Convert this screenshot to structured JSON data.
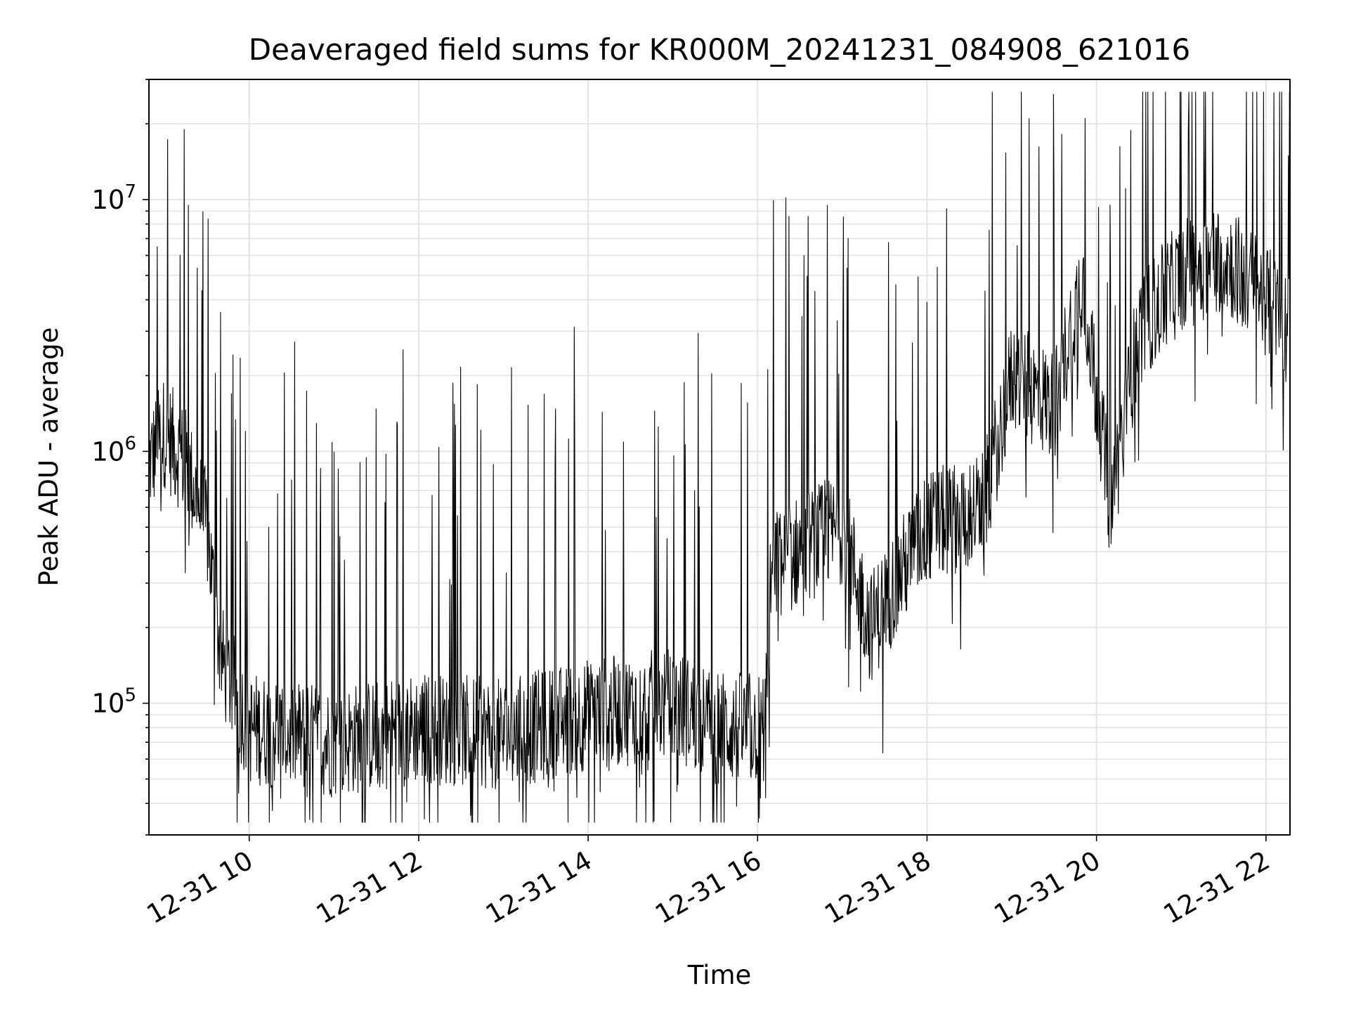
{
  "chart_data": {
    "type": "line",
    "title": "Deaveraged field sums for KR000M_20241231_084908_621016",
    "xlabel": "Time",
    "ylabel": "Peak ADU - average",
    "x_type": "time",
    "x_range": [
      "2024-12-31 08:49",
      "2024-12-31 22:17"
    ],
    "x_ticks": [
      {
        "time": "2024-12-31 10:00",
        "label": "12-31 10"
      },
      {
        "time": "2024-12-31 12:00",
        "label": "12-31 12"
      },
      {
        "time": "2024-12-31 14:00",
        "label": "12-31 14"
      },
      {
        "time": "2024-12-31 16:00",
        "label": "12-31 16"
      },
      {
        "time": "2024-12-31 18:00",
        "label": "12-31 18"
      },
      {
        "time": "2024-12-31 20:00",
        "label": "12-31 20"
      },
      {
        "time": "2024-12-31 22:00",
        "label": "12-31 22"
      }
    ],
    "y_scale": "log",
    "ylim": [
      30000,
      30000000
    ],
    "y_ticks": [
      {
        "value": 100000,
        "base": "10",
        "exp": "5"
      },
      {
        "value": 1000000,
        "base": "10",
        "exp": "6"
      },
      {
        "value": 10000000,
        "base": "10",
        "exp": "7"
      }
    ],
    "grid": true,
    "line_color": "#000000",
    "series_envelope": {
      "description_points": "approximate local trend of the jagged trace (time, value)",
      "points": [
        [
          "2024-12-31 08:49",
          900000
        ],
        [
          "2024-12-31 09:00",
          1200000
        ],
        [
          "2024-12-31 09:15",
          900000
        ],
        [
          "2024-12-31 09:30",
          500000
        ],
        [
          "2024-12-31 09:40",
          150000
        ],
        [
          "2024-12-31 10:00",
          80000
        ],
        [
          "2024-12-31 11:00",
          70000
        ],
        [
          "2024-12-31 12:00",
          80000
        ],
        [
          "2024-12-31 13:00",
          75000
        ],
        [
          "2024-12-31 14:00",
          90000
        ],
        [
          "2024-12-31 15:00",
          100000
        ],
        [
          "2024-12-31 15:30",
          80000
        ],
        [
          "2024-12-31 16:05",
          80000
        ],
        [
          "2024-12-31 16:10",
          350000
        ],
        [
          "2024-12-31 17:00",
          500000
        ],
        [
          "2024-12-31 17:20",
          200000
        ],
        [
          "2024-12-31 18:00",
          500000
        ],
        [
          "2024-12-31 18:40",
          600000
        ],
        [
          "2024-12-31 19:00",
          2000000
        ],
        [
          "2024-12-31 19:30",
          1500000
        ],
        [
          "2024-12-31 19:50",
          5000000
        ],
        [
          "2024-12-31 20:10",
          600000
        ],
        [
          "2024-12-31 20:30",
          3000000
        ],
        [
          "2024-12-31 21:00",
          5000000
        ],
        [
          "2024-12-31 21:30",
          6000000
        ],
        [
          "2024-12-31 22:00",
          4000000
        ],
        [
          "2024-12-31 22:17",
          3000000
        ]
      ]
    },
    "notable_points": [
      [
        "2024-12-31 08:55",
        6500000
      ],
      [
        "2024-12-31 09:14",
        19000000
      ],
      [
        "2024-12-31 18:14",
        9200000
      ],
      [
        "2024-12-31 19:52",
        21000000
      ],
      [
        "2024-12-31 21:05",
        19000000
      ],
      [
        "2024-12-31 15:45",
        39000
      ]
    ]
  }
}
